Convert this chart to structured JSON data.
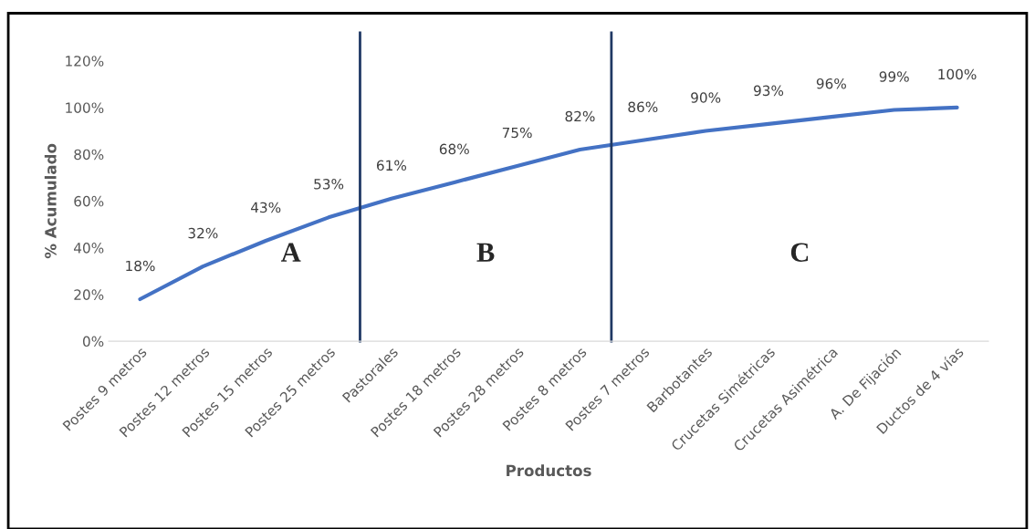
{
  "chart_data": {
    "type": "line",
    "xlabel": "Productos",
    "ylabel": "% Acumulado",
    "categories": [
      "Postes 9 metros",
      "Postes 12 metros",
      "Postes 15 metros",
      "Postes 25 metros",
      "Pastorales",
      "Postes 18 metros",
      "Postes 28 metros",
      "Postes 8 metros",
      "Postes 7 metros",
      "Barbotantes",
      "Crucetas Simétricas",
      "Crucetas Asimétrica",
      "A. De Fijación",
      "Ductos de 4 vías"
    ],
    "series": [
      {
        "color": "#4472c4",
        "values": [
          18,
          32,
          43,
          53,
          61,
          68,
          75,
          82,
          86,
          90,
          93,
          96,
          99,
          100
        ],
        "value_labels": [
          "18%",
          "32%",
          "43%",
          "53%",
          "61%",
          "68%",
          "75%",
          "82%",
          "86%",
          "90%",
          "93%",
          "96%",
          "99%",
          "100%"
        ]
      }
    ],
    "ylim": [
      0,
      120
    ],
    "yticks": [
      {
        "value": 0,
        "label": "0%"
      },
      {
        "value": 20,
        "label": "20%"
      },
      {
        "value": 40,
        "label": "40%"
      },
      {
        "value": 60,
        "label": "60%"
      },
      {
        "value": 80,
        "label": "80%"
      },
      {
        "value": 100,
        "label": "100%"
      },
      {
        "value": 120,
        "label": "120%"
      }
    ],
    "annotations": [
      "A",
      "B",
      "C"
    ],
    "grid": false,
    "legend": false,
    "marker": "none",
    "line_style": "solid"
  }
}
